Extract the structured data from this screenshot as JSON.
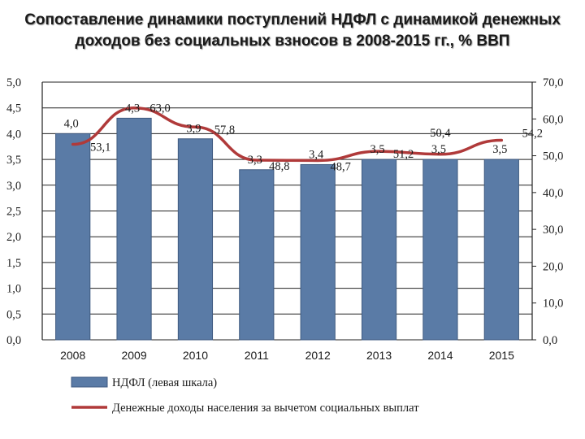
{
  "title": {
    "line1": "Сопоставление динамики поступлений НДФЛ с динамикой денежных",
    "line2": "доходов без социальных взносов в 2008-2015 гг., % ВВП"
  },
  "chart_data": {
    "type": "bar",
    "categories": [
      "2008",
      "2009",
      "2010",
      "2011",
      "2012",
      "2013",
      "2014",
      "2015"
    ],
    "series": [
      {
        "name": "НДФЛ (левая шкала)",
        "type": "bar",
        "axis": "left",
        "values": [
          4.0,
          4.3,
          3.9,
          3.3,
          3.4,
          3.5,
          3.5,
          3.5
        ],
        "labels": [
          "4,0",
          "4,3",
          "3,9",
          "3,3",
          "3,4",
          "3,5",
          "3,5",
          "3,5"
        ],
        "color": "#5a7ba6"
      },
      {
        "name": "Денежные доходы населения за вычетом социальных выплат",
        "type": "line",
        "axis": "right",
        "values": [
          53.1,
          63.0,
          57.8,
          48.8,
          48.7,
          51.2,
          50.4,
          54.2
        ],
        "labels": [
          "53,1",
          "63,0",
          "57,8",
          "48,8",
          "48,7",
          "51,2",
          "50,4",
          "54,2"
        ],
        "color": "#b03a3a"
      }
    ],
    "y_left": {
      "ylim": [
        0,
        5
      ],
      "ticks": [
        "0,0",
        "0,5",
        "1,0",
        "1,5",
        "2,0",
        "2,5",
        "3,0",
        "3,5",
        "4,0",
        "4,5",
        "5,0"
      ]
    },
    "y_right": {
      "ylim": [
        0,
        70
      ],
      "ticks": [
        "0,0",
        "10,0",
        "20,0",
        "30,0",
        "40,0",
        "50,0",
        "60,0",
        "70,0"
      ]
    },
    "grid": true,
    "legend": "bottom"
  }
}
